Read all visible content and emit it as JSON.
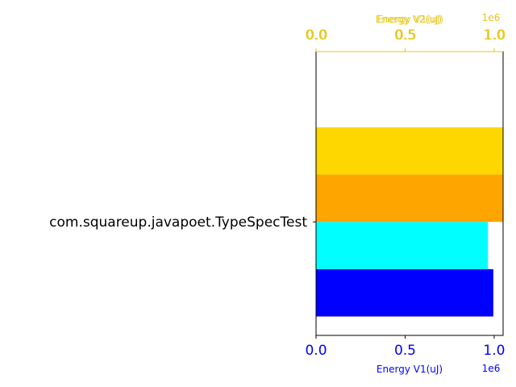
{
  "chart_data": {
    "type": "bar",
    "orientation": "horizontal",
    "category_label": "com.squareup.javapoet.TypeSpecTest",
    "axes": {
      "bottom": {
        "label": "Energy V1(uJ)",
        "ticks": [
          "0.0",
          "0.5",
          "1.0"
        ],
        "tick_values": [
          0,
          0.5,
          1.0
        ],
        "offset_text": "1e6",
        "color": "#0000ff",
        "range": [
          0,
          1.05
        ]
      },
      "top": {
        "labels": [
          "Energy V2(uJ)",
          "Energy V1(uJ)"
        ],
        "ticks": [
          "0.0",
          "0.5",
          "1.0"
        ],
        "tick_values": [
          0,
          0.5,
          1.0
        ],
        "offset_text": "1e6",
        "color": "#e6c619",
        "range": [
          0,
          1.05
        ]
      }
    },
    "series": [
      {
        "axis": "bottom",
        "color": "#0000ff",
        "value": 0.995,
        "band": [
          -0.5,
          -0.25
        ]
      },
      {
        "axis": "bottom",
        "color": "#00ffff",
        "value": 0.965,
        "band": [
          -0.25,
          0.0
        ]
      },
      {
        "axis": "top",
        "color": "#ffa500",
        "value": 1.05,
        "band": [
          0.0,
          0.25
        ]
      },
      {
        "axis": "top",
        "color": "#ffd700",
        "value": 1.05,
        "band": [
          0.25,
          0.5
        ]
      }
    ],
    "y_range": [
      -0.6,
      0.9
    ]
  }
}
